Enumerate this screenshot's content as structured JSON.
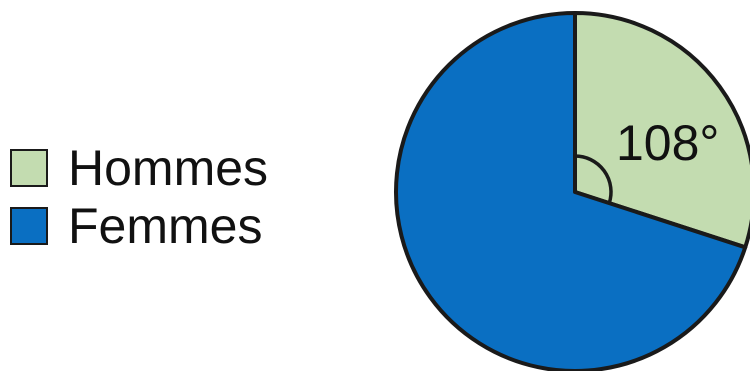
{
  "chart_data": {
    "type": "pie",
    "slices": [
      {
        "name": "Hommes",
        "angle": 108,
        "color": "#c3dcb0"
      },
      {
        "name": "Femmes",
        "angle": 252,
        "color": "#0a6fc2"
      }
    ],
    "angle_label": "108°",
    "legend": {
      "position": "left",
      "items": [
        {
          "label": "Hommes",
          "color": "#c3dcb0"
        },
        {
          "label": "Femmes",
          "color": "#0a6fc2"
        }
      ]
    }
  }
}
